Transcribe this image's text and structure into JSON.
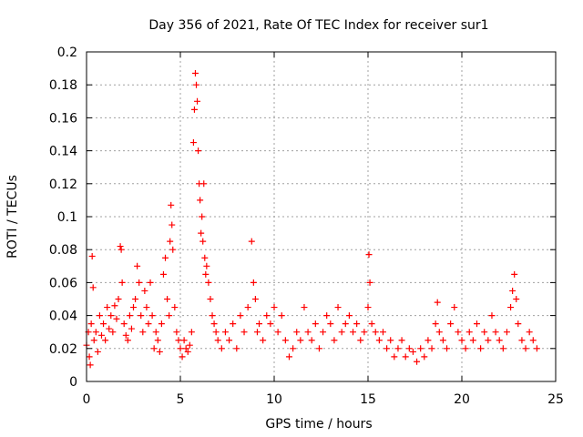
{
  "chart_data": {
    "type": "scatter",
    "title": "Day 356 of 2021, Rate Of TEC Index for receiver sur1",
    "xlabel": "GPS time / hours",
    "ylabel": "ROTI / TECUs",
    "xlim": [
      0,
      25
    ],
    "ylim": [
      0,
      0.2
    ],
    "xticks": [
      0,
      5,
      10,
      15,
      20,
      25
    ],
    "yticks": [
      0,
      0.02,
      0.04,
      0.06,
      0.08,
      0.1,
      0.12,
      0.14,
      0.16,
      0.18,
      0.2
    ],
    "xtick_labels": [
      "0",
      "5",
      "10",
      "15",
      "20",
      "25"
    ],
    "ytick_labels": [
      "0",
      "0.02",
      "0.04",
      "0.06",
      "0.08",
      "0.1",
      "0.12",
      "0.14",
      "0.16",
      "0.18",
      "0.2"
    ],
    "grid": true,
    "marker": "+",
    "color": "#ff0000",
    "series": [
      {
        "name": "ROTI",
        "points": [
          [
            0.0,
            0.022
          ],
          [
            0.1,
            0.03
          ],
          [
            0.15,
            0.015
          ],
          [
            0.2,
            0.01
          ],
          [
            0.25,
            0.035
          ],
          [
            0.3,
            0.076
          ],
          [
            0.35,
            0.057
          ],
          [
            0.4,
            0.025
          ],
          [
            0.5,
            0.03
          ],
          [
            0.6,
            0.018
          ],
          [
            0.7,
            0.04
          ],
          [
            0.8,
            0.028
          ],
          [
            0.9,
            0.035
          ],
          [
            1.0,
            0.025
          ],
          [
            1.1,
            0.045
          ],
          [
            1.2,
            0.032
          ],
          [
            1.3,
            0.04
          ],
          [
            1.4,
            0.03
          ],
          [
            1.5,
            0.046
          ],
          [
            1.6,
            0.038
          ],
          [
            1.7,
            0.05
          ],
          [
            1.8,
            0.082
          ],
          [
            1.85,
            0.08
          ],
          [
            1.9,
            0.06
          ],
          [
            2.0,
            0.035
          ],
          [
            2.1,
            0.028
          ],
          [
            2.2,
            0.025
          ],
          [
            2.3,
            0.04
          ],
          [
            2.4,
            0.032
          ],
          [
            2.5,
            0.045
          ],
          [
            2.6,
            0.05
          ],
          [
            2.7,
            0.07
          ],
          [
            2.8,
            0.06
          ],
          [
            2.9,
            0.04
          ],
          [
            3.0,
            0.03
          ],
          [
            3.1,
            0.055
          ],
          [
            3.2,
            0.045
          ],
          [
            3.3,
            0.035
          ],
          [
            3.4,
            0.06
          ],
          [
            3.5,
            0.04
          ],
          [
            3.6,
            0.02
          ],
          [
            3.7,
            0.03
          ],
          [
            3.8,
            0.025
          ],
          [
            3.9,
            0.018
          ],
          [
            4.0,
            0.035
          ],
          [
            4.1,
            0.065
          ],
          [
            4.2,
            0.075
          ],
          [
            4.3,
            0.05
          ],
          [
            4.4,
            0.04
          ],
          [
            4.45,
            0.085
          ],
          [
            4.5,
            0.107
          ],
          [
            4.55,
            0.095
          ],
          [
            4.6,
            0.08
          ],
          [
            4.7,
            0.045
          ],
          [
            4.8,
            0.03
          ],
          [
            4.9,
            0.025
          ],
          [
            5.0,
            0.02
          ],
          [
            5.1,
            0.015
          ],
          [
            5.2,
            0.025
          ],
          [
            5.3,
            0.02
          ],
          [
            5.4,
            0.018
          ],
          [
            5.5,
            0.022
          ],
          [
            5.6,
            0.03
          ],
          [
            5.7,
            0.145
          ],
          [
            5.75,
            0.165
          ],
          [
            5.8,
            0.187
          ],
          [
            5.85,
            0.18
          ],
          [
            5.9,
            0.17
          ],
          [
            5.95,
            0.14
          ],
          [
            6.0,
            0.12
          ],
          [
            6.05,
            0.11
          ],
          [
            6.1,
            0.09
          ],
          [
            6.15,
            0.1
          ],
          [
            6.2,
            0.085
          ],
          [
            6.25,
            0.12
          ],
          [
            6.3,
            0.075
          ],
          [
            6.35,
            0.065
          ],
          [
            6.4,
            0.07
          ],
          [
            6.5,
            0.06
          ],
          [
            6.6,
            0.05
          ],
          [
            6.7,
            0.04
          ],
          [
            6.8,
            0.035
          ],
          [
            6.9,
            0.03
          ],
          [
            7.0,
            0.025
          ],
          [
            7.2,
            0.02
          ],
          [
            7.4,
            0.03
          ],
          [
            7.6,
            0.025
          ],
          [
            7.8,
            0.035
          ],
          [
            8.0,
            0.02
          ],
          [
            8.2,
            0.04
          ],
          [
            8.4,
            0.03
          ],
          [
            8.6,
            0.045
          ],
          [
            8.8,
            0.085
          ],
          [
            8.9,
            0.06
          ],
          [
            9.0,
            0.05
          ],
          [
            9.1,
            0.03
          ],
          [
            9.2,
            0.035
          ],
          [
            9.4,
            0.025
          ],
          [
            9.6,
            0.04
          ],
          [
            9.8,
            0.035
          ],
          [
            10.0,
            0.045
          ],
          [
            10.2,
            0.03
          ],
          [
            10.4,
            0.04
          ],
          [
            10.6,
            0.025
          ],
          [
            10.8,
            0.015
          ],
          [
            11.0,
            0.02
          ],
          [
            11.2,
            0.03
          ],
          [
            11.4,
            0.025
          ],
          [
            11.6,
            0.045
          ],
          [
            11.8,
            0.03
          ],
          [
            12.0,
            0.025
          ],
          [
            12.2,
            0.035
          ],
          [
            12.4,
            0.02
          ],
          [
            12.6,
            0.03
          ],
          [
            12.8,
            0.04
          ],
          [
            13.0,
            0.035
          ],
          [
            13.2,
            0.025
          ],
          [
            13.4,
            0.045
          ],
          [
            13.6,
            0.03
          ],
          [
            13.8,
            0.035
          ],
          [
            14.0,
            0.04
          ],
          [
            14.2,
            0.03
          ],
          [
            14.4,
            0.035
          ],
          [
            14.6,
            0.025
          ],
          [
            14.8,
            0.03
          ],
          [
            15.0,
            0.045
          ],
          [
            15.05,
            0.077
          ],
          [
            15.1,
            0.06
          ],
          [
            15.2,
            0.035
          ],
          [
            15.4,
            0.03
          ],
          [
            15.6,
            0.025
          ],
          [
            15.8,
            0.03
          ],
          [
            16.0,
            0.02
          ],
          [
            16.2,
            0.025
          ],
          [
            16.4,
            0.015
          ],
          [
            16.6,
            0.02
          ],
          [
            16.8,
            0.025
          ],
          [
            17.0,
            0.015
          ],
          [
            17.2,
            0.02
          ],
          [
            17.4,
            0.018
          ],
          [
            17.6,
            0.012
          ],
          [
            17.8,
            0.02
          ],
          [
            18.0,
            0.015
          ],
          [
            18.2,
            0.025
          ],
          [
            18.4,
            0.02
          ],
          [
            18.6,
            0.035
          ],
          [
            18.7,
            0.048
          ],
          [
            18.8,
            0.03
          ],
          [
            19.0,
            0.025
          ],
          [
            19.2,
            0.02
          ],
          [
            19.4,
            0.035
          ],
          [
            19.6,
            0.045
          ],
          [
            19.8,
            0.03
          ],
          [
            20.0,
            0.025
          ],
          [
            20.2,
            0.02
          ],
          [
            20.4,
            0.03
          ],
          [
            20.6,
            0.025
          ],
          [
            20.8,
            0.035
          ],
          [
            21.0,
            0.02
          ],
          [
            21.2,
            0.03
          ],
          [
            21.4,
            0.025
          ],
          [
            21.6,
            0.04
          ],
          [
            21.8,
            0.03
          ],
          [
            22.0,
            0.025
          ],
          [
            22.2,
            0.02
          ],
          [
            22.4,
            0.03
          ],
          [
            22.6,
            0.045
          ],
          [
            22.7,
            0.055
          ],
          [
            22.8,
            0.065
          ],
          [
            22.9,
            0.05
          ],
          [
            23.0,
            0.035
          ],
          [
            23.2,
            0.025
          ],
          [
            23.4,
            0.02
          ],
          [
            23.6,
            0.03
          ],
          [
            23.8,
            0.025
          ],
          [
            24.0,
            0.02
          ]
        ]
      }
    ]
  }
}
